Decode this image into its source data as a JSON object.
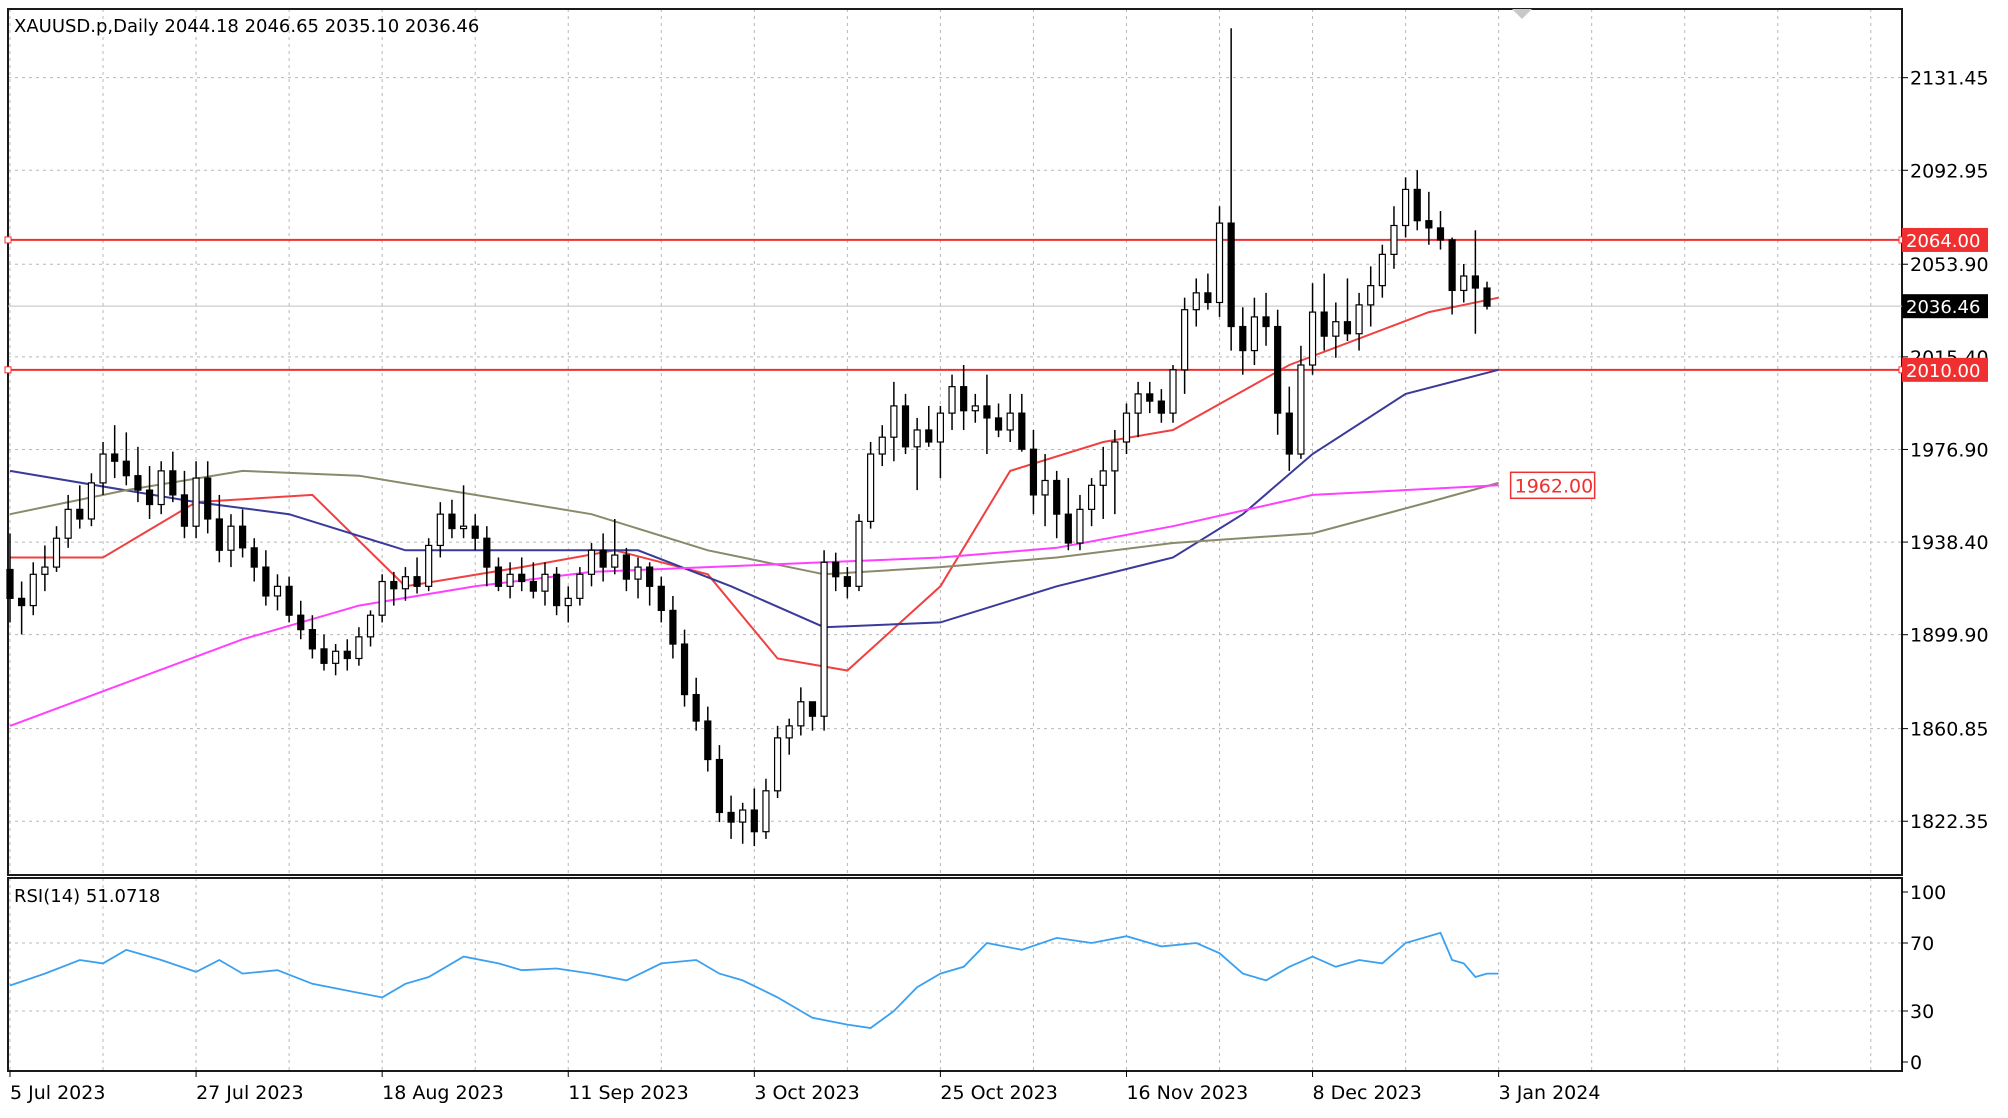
{
  "header": {
    "label": "XAUUSD.p,Daily  2044.18 2046.65 2035.10 2036.46"
  },
  "rsi_header": {
    "label": "RSI(14) 51.0718"
  },
  "colors": {
    "bull_body": "#ffffff",
    "bear_body": "#000000",
    "wick": "#000000",
    "ma_fast": "#f04040",
    "ma_mid": "#3a3a9a",
    "ma_olive": "#8a8a6a",
    "ma_magenta": "#ff40ff",
    "level": "#f03030",
    "rsi": "#3aa0f0",
    "grid": "#b8b8b8"
  },
  "chart_data": [
    {
      "type": "candlestick",
      "symbol": "XAUUSD.p",
      "timeframe": "Daily",
      "ohlc_last": {
        "open": 2044.18,
        "high": 2046.65,
        "low": 2035.1,
        "close": 2036.46
      },
      "ylim": [
        1800,
        2160
      ],
      "y_ticks": [
        1822.35,
        1860.85,
        1899.9,
        1938.4,
        1976.9,
        2015.4,
        2053.9,
        2092.95,
        2131.45
      ],
      "x_ticks": [
        "5 Jul 2023",
        "27 Jul 2023",
        "18 Aug 2023",
        "11 Sep 2023",
        "3 Oct 2023",
        "25 Oct 2023",
        "16 Nov 2023",
        "8 Dec 2023",
        "3 Jan 2024"
      ],
      "x_tick_index": [
        0,
        16,
        32,
        48,
        64,
        80,
        96,
        112,
        128
      ],
      "current_price": {
        "value": 2036.46,
        "label": "2036.46"
      },
      "horizontal_levels": [
        {
          "value": 2064.0,
          "label": "2064.00"
        },
        {
          "value": 2010.0,
          "label": "2010.00"
        }
      ],
      "marker_level": {
        "value": 1962.0,
        "label": "1962.00"
      },
      "grid": true,
      "candles": [
        [
          1927,
          1942,
          1905,
          1915
        ],
        [
          1915,
          1922,
          1900,
          1912
        ],
        [
          1912,
          1930,
          1908,
          1925
        ],
        [
          1925,
          1937,
          1918,
          1928
        ],
        [
          1928,
          1945,
          1926,
          1940
        ],
        [
          1940,
          1958,
          1936,
          1952
        ],
        [
          1952,
          1962,
          1944,
          1948
        ],
        [
          1948,
          1967,
          1945,
          1963
        ],
        [
          1963,
          1980,
          1958,
          1975
        ],
        [
          1975,
          1987,
          1965,
          1972
        ],
        [
          1972,
          1984,
          1962,
          1966
        ],
        [
          1966,
          1978,
          1955,
          1960
        ],
        [
          1960,
          1970,
          1948,
          1954
        ],
        [
          1954,
          1972,
          1950,
          1968
        ],
        [
          1968,
          1976,
          1955,
          1958
        ],
        [
          1958,
          1968,
          1940,
          1945
        ],
        [
          1945,
          1972,
          1940,
          1965
        ],
        [
          1965,
          1972,
          1942,
          1948
        ],
        [
          1948,
          1958,
          1930,
          1935
        ],
        [
          1935,
          1950,
          1928,
          1945
        ],
        [
          1945,
          1952,
          1932,
          1936
        ],
        [
          1936,
          1940,
          1922,
          1928
        ],
        [
          1928,
          1935,
          1912,
          1916
        ],
        [
          1916,
          1925,
          1910,
          1920
        ],
        [
          1920,
          1924,
          1905,
          1908
        ],
        [
          1908,
          1914,
          1898,
          1902
        ],
        [
          1902,
          1908,
          1890,
          1894
        ],
        [
          1894,
          1900,
          1885,
          1888
        ],
        [
          1888,
          1896,
          1883,
          1893
        ],
        [
          1893,
          1898,
          1885,
          1890
        ],
        [
          1890,
          1903,
          1887,
          1899
        ],
        [
          1899,
          1910,
          1895,
          1908
        ],
        [
          1908,
          1925,
          1905,
          1922
        ],
        [
          1922,
          1926,
          1912,
          1919
        ],
        [
          1919,
          1928,
          1914,
          1924
        ],
        [
          1924,
          1932,
          1917,
          1920
        ],
        [
          1920,
          1940,
          1918,
          1937
        ],
        [
          1937,
          1955,
          1932,
          1950
        ],
        [
          1950,
          1956,
          1940,
          1944
        ],
        [
          1944,
          1962,
          1940,
          1945
        ],
        [
          1945,
          1950,
          1935,
          1940
        ],
        [
          1940,
          1945,
          1920,
          1928
        ],
        [
          1928,
          1932,
          1918,
          1920
        ],
        [
          1920,
          1930,
          1915,
          1925
        ],
        [
          1925,
          1932,
          1918,
          1922
        ],
        [
          1922,
          1930,
          1915,
          1918
        ],
        [
          1918,
          1930,
          1912,
          1925
        ],
        [
          1925,
          1928,
          1908,
          1912
        ],
        [
          1912,
          1920,
          1905,
          1915
        ],
        [
          1915,
          1928,
          1912,
          1925
        ],
        [
          1925,
          1938,
          1920,
          1935
        ],
        [
          1935,
          1942,
          1922,
          1928
        ],
        [
          1928,
          1948,
          1925,
          1933
        ],
        [
          1933,
          1936,
          1918,
          1923
        ],
        [
          1923,
          1932,
          1915,
          1928
        ],
        [
          1928,
          1930,
          1912,
          1920
        ],
        [
          1920,
          1924,
          1905,
          1910
        ],
        [
          1910,
          1916,
          1890,
          1896
        ],
        [
          1896,
          1902,
          1870,
          1875
        ],
        [
          1875,
          1882,
          1860,
          1864
        ],
        [
          1864,
          1870,
          1843,
          1848
        ],
        [
          1848,
          1854,
          1822,
          1826
        ],
        [
          1826,
          1833,
          1815,
          1822
        ],
        [
          1822,
          1830,
          1813,
          1827
        ],
        [
          1827,
          1836,
          1812,
          1818
        ],
        [
          1818,
          1840,
          1815,
          1835
        ],
        [
          1835,
          1862,
          1832,
          1857
        ],
        [
          1857,
          1865,
          1850,
          1862
        ],
        [
          1862,
          1878,
          1858,
          1872
        ],
        [
          1872,
          1872,
          1860,
          1866
        ],
        [
          1866,
          1935,
          1860,
          1930
        ],
        [
          1930,
          1934,
          1918,
          1924
        ],
        [
          1924,
          1928,
          1915,
          1920
        ],
        [
          1920,
          1950,
          1918,
          1947
        ],
        [
          1947,
          1980,
          1944,
          1975
        ],
        [
          1975,
          1987,
          1970,
          1982
        ],
        [
          1982,
          2005,
          1972,
          1995
        ],
        [
          1995,
          2000,
          1975,
          1978
        ],
        [
          1978,
          1990,
          1960,
          1985
        ],
        [
          1985,
          1995,
          1978,
          1980
        ],
        [
          1980,
          1995,
          1965,
          1992
        ],
        [
          1992,
          2008,
          1985,
          2003
        ],
        [
          2003,
          2012,
          1985,
          1993
        ],
        [
          1993,
          2000,
          1988,
          1995
        ],
        [
          1995,
          2008,
          1975,
          1990
        ],
        [
          1990,
          1996,
          1982,
          1985
        ],
        [
          1985,
          2000,
          1980,
          1992
        ],
        [
          1992,
          2000,
          1976,
          1977
        ],
        [
          1977,
          1985,
          1950,
          1958
        ],
        [
          1958,
          1975,
          1945,
          1964
        ],
        [
          1964,
          1968,
          1940,
          1950
        ],
        [
          1950,
          1965,
          1935,
          1938
        ],
        [
          1938,
          1958,
          1935,
          1952
        ],
        [
          1952,
          1965,
          1945,
          1962
        ],
        [
          1962,
          1978,
          1948,
          1968
        ],
        [
          1968,
          1985,
          1950,
          1980
        ],
        [
          1980,
          1996,
          1975,
          1992
        ],
        [
          1992,
          2005,
          1982,
          2000
        ],
        [
          2000,
          2005,
          1992,
          1997
        ],
        [
          1997,
          2002,
          1988,
          1992
        ],
        [
          1992,
          2012,
          1988,
          2010
        ],
        [
          2010,
          2040,
          2000,
          2035
        ],
        [
          2035,
          2048,
          2028,
          2042
        ],
        [
          2042,
          2050,
          2035,
          2038
        ],
        [
          2038,
          2078,
          2032,
          2071
        ],
        [
          2071,
          2152,
          2018,
          2028
        ],
        [
          2028,
          2036,
          2008,
          2018
        ],
        [
          2018,
          2040,
          2012,
          2032
        ],
        [
          2032,
          2042,
          2020,
          2028
        ],
        [
          2028,
          2035,
          1983,
          1992
        ],
        [
          1992,
          2003,
          1968,
          1975
        ],
        [
          1975,
          2020,
          1973,
          2012
        ],
        [
          2012,
          2046,
          2008,
          2034
        ],
        [
          2034,
          2050,
          2018,
          2024
        ],
        [
          2024,
          2038,
          2015,
          2030
        ],
        [
          2030,
          2048,
          2022,
          2025
        ],
        [
          2025,
          2042,
          2018,
          2037
        ],
        [
          2037,
          2053,
          2028,
          2045
        ],
        [
          2045,
          2062,
          2040,
          2058
        ],
        [
          2058,
          2078,
          2052,
          2070
        ],
        [
          2070,
          2090,
          2065,
          2085
        ],
        [
          2085,
          2093,
          2068,
          2072
        ],
        [
          2072,
          2084,
          2062,
          2069
        ],
        [
          2069,
          2076,
          2060,
          2064
        ],
        [
          2064,
          2065,
          2033,
          2043
        ],
        [
          2043,
          2054,
          2038,
          2049
        ],
        [
          2049,
          2068,
          2025,
          2044
        ],
        [
          2044,
          2046.65,
          2035.1,
          2036.46
        ]
      ],
      "moving_averages": [
        {
          "key": "ma_fast",
          "values": [
            [
              0,
              1932
            ],
            [
              8,
              1932
            ],
            [
              16,
              1955
            ],
            [
              26,
              1958
            ],
            [
              34,
              1920
            ],
            [
              44,
              1928
            ],
            [
              52,
              1935
            ],
            [
              60,
              1925
            ],
            [
              66,
              1890
            ],
            [
              72,
              1885
            ],
            [
              80,
              1920
            ],
            [
              86,
              1968
            ],
            [
              94,
              1980
            ],
            [
              100,
              1985
            ],
            [
              110,
              2012
            ],
            [
              122,
              2034
            ],
            [
              128,
              2040
            ]
          ]
        },
        {
          "key": "ma_mid",
          "values": [
            [
              0,
              1968
            ],
            [
              16,
              1955
            ],
            [
              24,
              1950
            ],
            [
              34,
              1935
            ],
            [
              44,
              1935
            ],
            [
              54,
              1935
            ],
            [
              62,
              1920
            ],
            [
              70,
              1903
            ],
            [
              80,
              1905
            ],
            [
              90,
              1920
            ],
            [
              100,
              1932
            ],
            [
              106,
              1950
            ],
            [
              112,
              1975
            ],
            [
              120,
              2000
            ],
            [
              128,
              2010
            ]
          ]
        },
        {
          "key": "ma_olive",
          "values": [
            [
              0,
              1950
            ],
            [
              10,
              1960
            ],
            [
              20,
              1968
            ],
            [
              30,
              1966
            ],
            [
              40,
              1958
            ],
            [
              50,
              1950
            ],
            [
              60,
              1935
            ],
            [
              70,
              1925
            ],
            [
              80,
              1928
            ],
            [
              90,
              1932
            ],
            [
              100,
              1938
            ],
            [
              112,
              1942
            ],
            [
              122,
              1955
            ],
            [
              128,
              1963
            ]
          ]
        },
        {
          "key": "ma_magenta",
          "values": [
            [
              0,
              1862
            ],
            [
              10,
              1880
            ],
            [
              20,
              1898
            ],
            [
              30,
              1912
            ],
            [
              40,
              1920
            ],
            [
              50,
              1926
            ],
            [
              60,
              1928
            ],
            [
              70,
              1930
            ],
            [
              80,
              1932
            ],
            [
              90,
              1936
            ],
            [
              100,
              1945
            ],
            [
              112,
              1958
            ],
            [
              128,
              1962
            ]
          ]
        }
      ]
    },
    {
      "type": "line",
      "title": "RSI(14) 51.0718",
      "ylim": [
        0,
        100
      ],
      "y_ticks": [
        0,
        30,
        70,
        100
      ],
      "values": [
        [
          0,
          45
        ],
        [
          3,
          52
        ],
        [
          6,
          60
        ],
        [
          8,
          58
        ],
        [
          10,
          66
        ],
        [
          13,
          60
        ],
        [
          16,
          53
        ],
        [
          18,
          60
        ],
        [
          20,
          52
        ],
        [
          23,
          54
        ],
        [
          26,
          46
        ],
        [
          29,
          42
        ],
        [
          32,
          38
        ],
        [
          34,
          46
        ],
        [
          36,
          50
        ],
        [
          39,
          62
        ],
        [
          42,
          58
        ],
        [
          44,
          54
        ],
        [
          47,
          55
        ],
        [
          50,
          52
        ],
        [
          53,
          48
        ],
        [
          56,
          58
        ],
        [
          59,
          60
        ],
        [
          61,
          52
        ],
        [
          63,
          48
        ],
        [
          66,
          38
        ],
        [
          69,
          26
        ],
        [
          72,
          22
        ],
        [
          74,
          20
        ],
        [
          76,
          30
        ],
        [
          78,
          44
        ],
        [
          80,
          52
        ],
        [
          82,
          56
        ],
        [
          84,
          70
        ],
        [
          87,
          66
        ],
        [
          90,
          73
        ],
        [
          93,
          70
        ],
        [
          96,
          74
        ],
        [
          99,
          68
        ],
        [
          102,
          70
        ],
        [
          104,
          64
        ],
        [
          106,
          52
        ],
        [
          108,
          48
        ],
        [
          110,
          56
        ],
        [
          112,
          62
        ],
        [
          114,
          56
        ],
        [
          116,
          60
        ],
        [
          118,
          58
        ],
        [
          120,
          70
        ],
        [
          122,
          74
        ],
        [
          123,
          76
        ],
        [
          124,
          60
        ],
        [
          125,
          58
        ],
        [
          126,
          50
        ],
        [
          127,
          52
        ],
        [
          128,
          52
        ]
      ]
    }
  ]
}
